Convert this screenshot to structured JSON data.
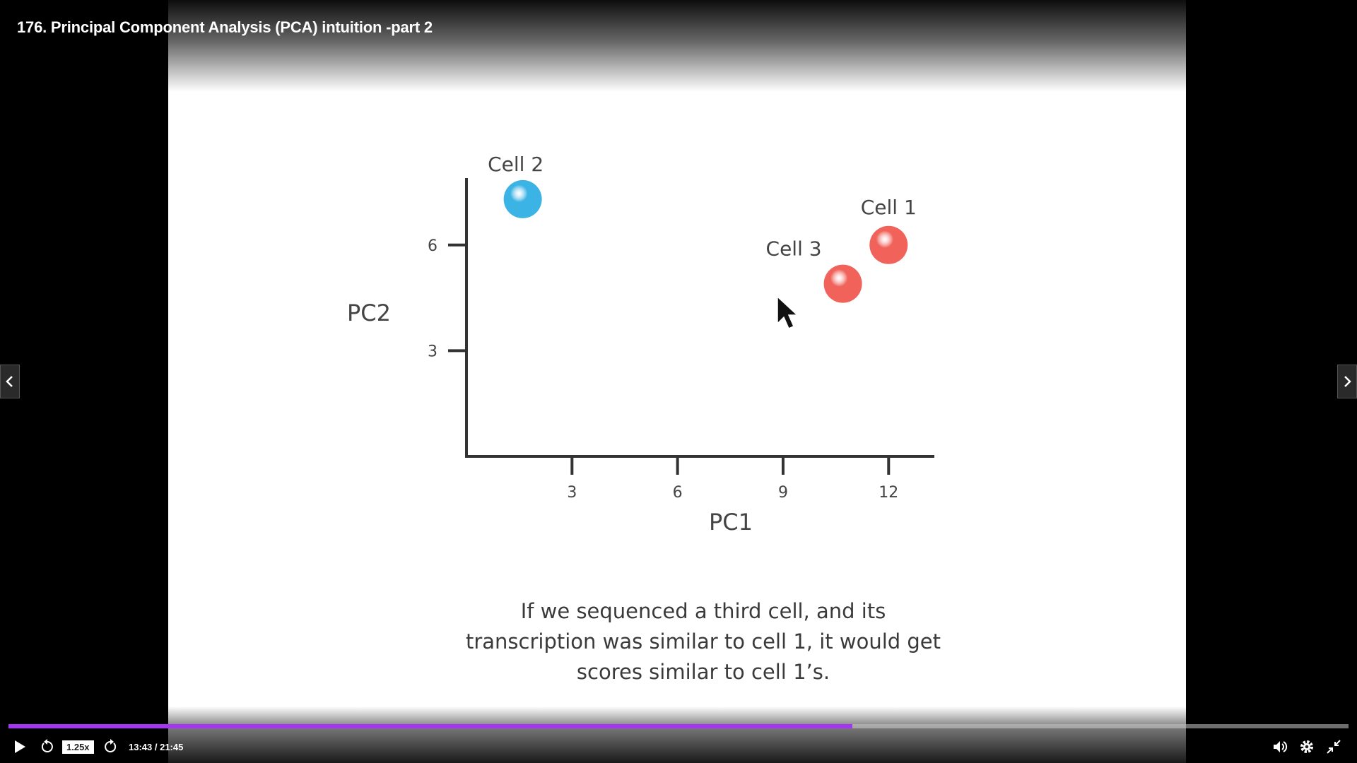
{
  "video": {
    "title": "176. Principal Component Analysis (PCA) intuition -part 2"
  },
  "slide": {
    "caption_lines": [
      "If we sequenced a third cell, and its",
      "transcription was similar to cell 1, it would get",
      "scores similar to cell 1’s."
    ]
  },
  "chart_data": {
    "type": "scatter",
    "xlabel": "PC1",
    "ylabel": "PC2",
    "x_ticks": [
      3,
      6,
      9,
      12
    ],
    "y_ticks": [
      3,
      6
    ],
    "xlim": [
      0,
      13.3
    ],
    "ylim": [
      0,
      7.9
    ],
    "points": [
      {
        "label": "Cell 2",
        "x": 1.6,
        "y": 7.3,
        "color": "#3bb3e4"
      },
      {
        "label": "Cell 1",
        "x": 12.0,
        "y": 6.0,
        "color": "#f0625a"
      },
      {
        "label": "Cell 3",
        "x": 10.7,
        "y": 4.9,
        "color": "#f0625a"
      }
    ]
  },
  "player": {
    "speed": "1.25x",
    "time_current": "13:43",
    "time_total": "21:45",
    "timecode": "13:43 / 21:45",
    "progress": 0.63,
    "accent_color": "#a435f0"
  }
}
